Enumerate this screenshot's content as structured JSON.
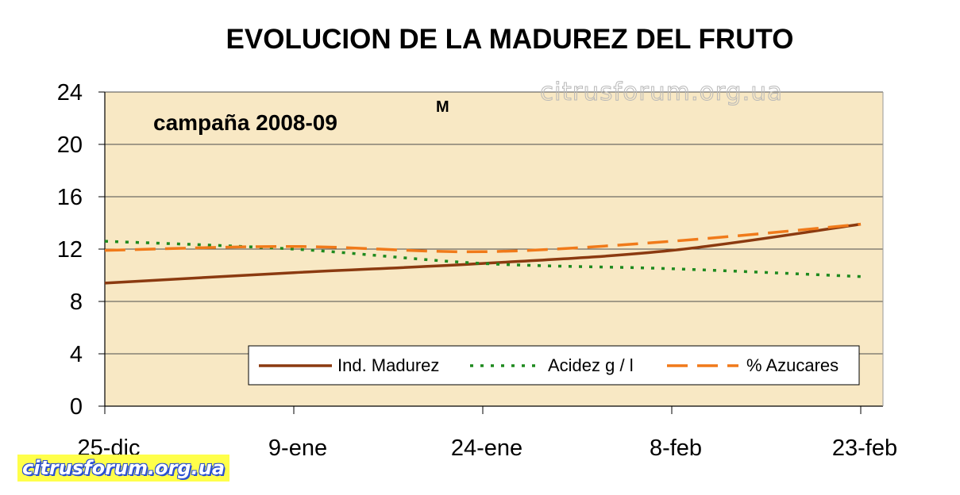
{
  "chart_data": {
    "type": "line",
    "title": "EVOLUCION DE LA MADUREZ DEL FRUTO",
    "subtitle": "campaña 2008-09",
    "annotation": "M",
    "x": [
      "25-dic",
      "9-ene",
      "24-ene",
      "8-feb",
      "23-feb"
    ],
    "x_ticks": [
      "25-dic",
      "9-ene",
      "24-ene",
      "8-feb",
      "23-feb"
    ],
    "ylim": [
      0,
      24
    ],
    "y_ticks": [
      "0",
      "4",
      "8",
      "12",
      "16",
      "20",
      "24"
    ],
    "grid": true,
    "legend_position": "bottom-right",
    "series": [
      {
        "name": "Ind. Madurez",
        "values": [
          9.4,
          10.2,
          10.9,
          11.9,
          13.9
        ],
        "color": "#8b3a10",
        "style": "solid"
      },
      {
        "name": "Acidez g / l",
        "values": [
          12.6,
          12.0,
          10.9,
          10.5,
          9.9
        ],
        "color": "#1e8a1e",
        "style": "dotted"
      },
      {
        "name": "% Azucares",
        "values": [
          11.9,
          12.2,
          11.8,
          12.6,
          13.9
        ],
        "color": "#f07a1a",
        "style": "dashed"
      }
    ],
    "colors": {
      "plot_background": "#f8e8c4",
      "gridline": "#4d4d4d"
    }
  },
  "watermarks": {
    "top": "citrusforum.org.ua",
    "badge": "citrusforum.org.ua"
  }
}
